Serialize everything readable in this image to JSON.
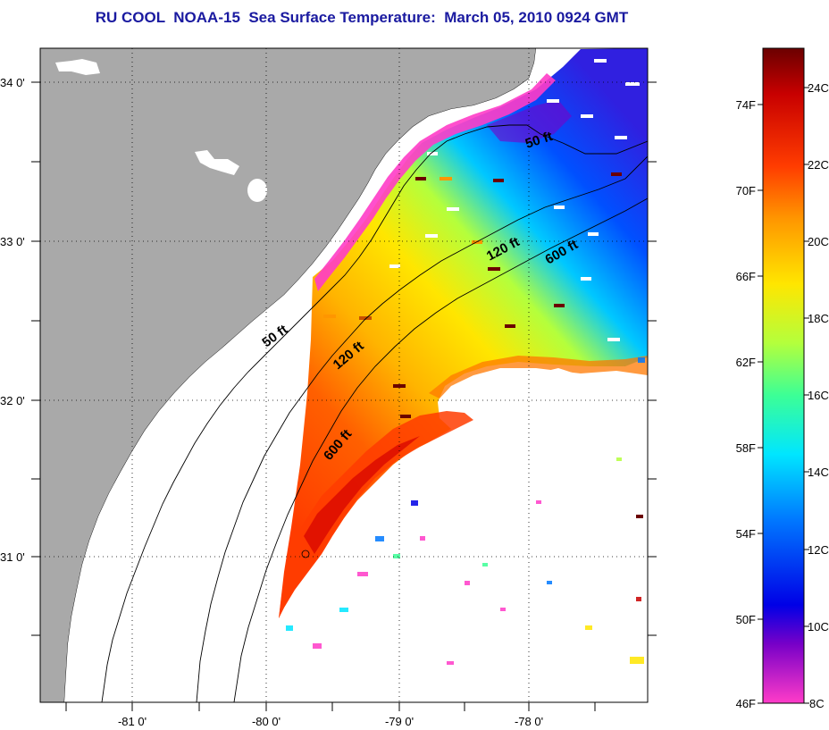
{
  "title": "RU COOL  NOAA-15  Sea Surface Temperature:  March 05, 2010 0924 GMT",
  "map": {
    "lon_ticks": [
      "-81 0'",
      "-80 0'",
      "-79 0'",
      "-78 0'"
    ],
    "lat_ticks": [
      "34 0'",
      "33 0'",
      "32 0'",
      "31 0'"
    ],
    "contours": [
      {
        "label": "50 ft"
      },
      {
        "label": "50 ft"
      },
      {
        "label": "120 ft"
      },
      {
        "label": "120 ft"
      },
      {
        "label": "600 ft"
      },
      {
        "label": "600 ft"
      }
    ],
    "colors": {
      "land": "#a9a9a9",
      "ocean_nodata": "#ffffff"
    }
  },
  "colorbar": {
    "fahrenheit": [
      "74F",
      "70F",
      "66F",
      "62F",
      "58F",
      "54F",
      "50F",
      "46F"
    ],
    "celsius": [
      "24C",
      "22C",
      "20C",
      "18C",
      "16C",
      "14C",
      "12C",
      "10C",
      "8C"
    ],
    "colors": [
      "#6b0000",
      "#c80000",
      "#ff3c00",
      "#ff9600",
      "#ffe600",
      "#b4ff3c",
      "#3cff96",
      "#00e6ff",
      "#0078ff",
      "#0000e6",
      "#7800c8",
      "#ff3cc8"
    ]
  }
}
